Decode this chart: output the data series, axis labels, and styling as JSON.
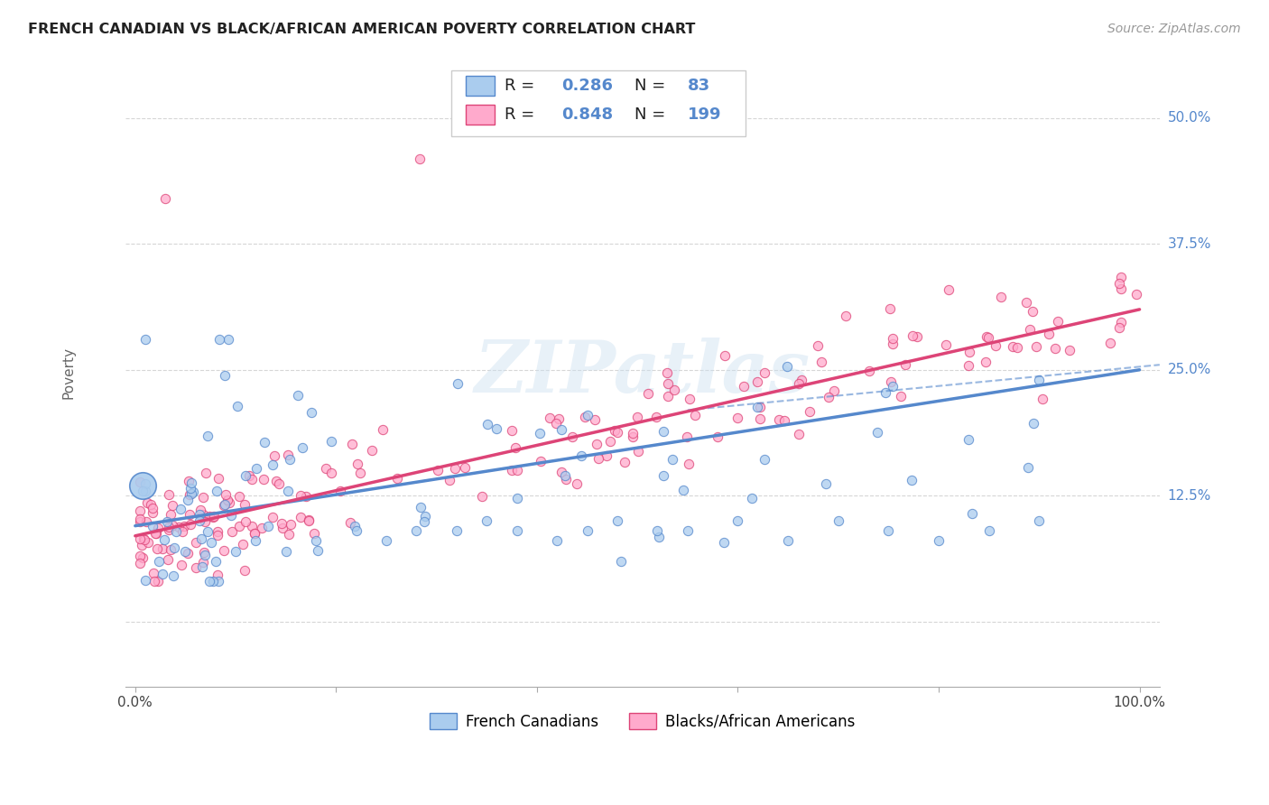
{
  "title": "FRENCH CANADIAN VS BLACK/AFRICAN AMERICAN POVERTY CORRELATION CHART",
  "source": "Source: ZipAtlas.com",
  "ylabel": "Poverty",
  "bg_color": "#ffffff",
  "grid_color": "#cccccc",
  "watermark": "ZIPatlas",
  "blue_color": "#5588cc",
  "blue_fill": "#aaccee",
  "pink_color": "#dd4477",
  "pink_fill": "#ffaacc",
  "legend_R1": "0.286",
  "legend_N1": "83",
  "legend_R2": "0.848",
  "legend_N2": "199",
  "legend_label1": "French Canadians",
  "legend_label2": "Blacks/African Americans",
  "blue_slope": 0.155,
  "blue_intercept": 0.095,
  "pink_slope": 0.225,
  "pink_intercept": 0.085,
  "yticks": [
    0.0,
    0.125,
    0.25,
    0.375,
    0.5
  ],
  "ytick_labels": [
    "",
    "12.5%",
    "25.0%",
    "37.5%",
    "50.0%"
  ],
  "xlim": [
    -0.01,
    1.02
  ],
  "ylim": [
    -0.065,
    0.56
  ]
}
